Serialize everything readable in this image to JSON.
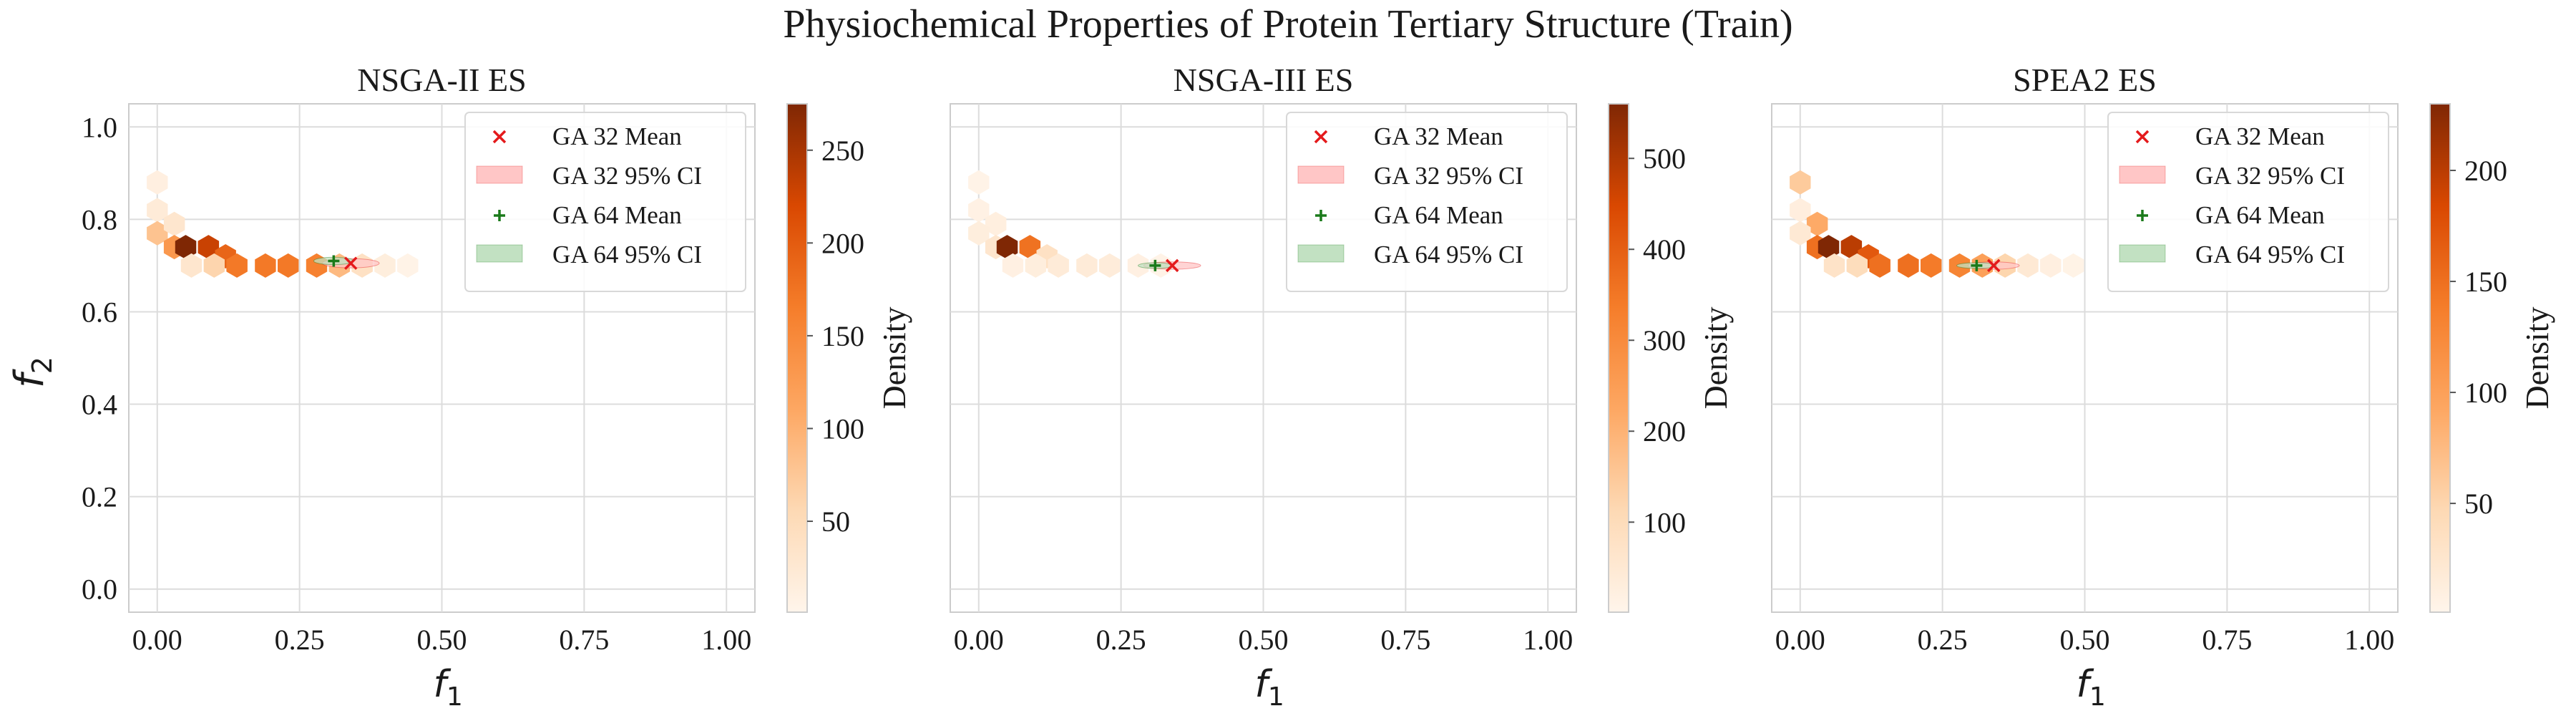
{
  "figure": {
    "suptitle": "Physiochemical Properties of Protein Tertiary Structure (Train)",
    "shared_ylabel": "f",
    "shared_ylabel_sub": "2",
    "xlabel": "f",
    "xlabel_sub": "1",
    "colorbar_label": "Density"
  },
  "colors": {
    "ga32": "#e41a1c",
    "ga32_fill": "#ffc6c6",
    "ga64": "#1a7a1a",
    "ga64_fill": "#c2e1c2",
    "grid": "#dcdcdc",
    "cmap_low": "#fff5eb",
    "cmap_mid": "#f57d2a",
    "cmap_high": "#7f2704"
  },
  "legend": {
    "ga32_mean": "GA 32 Mean",
    "ga32_ci": "GA 32 95% CI",
    "ga64_mean": "GA 64 Mean",
    "ga64_ci": "GA 64 95% CI"
  },
  "chart_data": [
    {
      "type": "hexbin",
      "title": "NSGA-II ES",
      "xlabel": "f1",
      "ylabel": "f2",
      "xlim": [
        -0.05,
        1.05
      ],
      "ylim": [
        -0.05,
        1.05
      ],
      "xticks": [
        0.0,
        0.25,
        0.5,
        0.75,
        1.0
      ],
      "xtick_labels": [
        "0.00",
        "0.25",
        "0.50",
        "0.75",
        "1.00"
      ],
      "yticks": [
        0.0,
        0.2,
        0.4,
        0.6,
        0.8,
        1.0
      ],
      "ytick_labels": [
        "0.0",
        "0.2",
        "0.4",
        "0.6",
        "0.8",
        "1.0"
      ],
      "grid": true,
      "legend_position": "top-right",
      "colorbar": {
        "label": "Density",
        "min": 1,
        "max": 275,
        "ticks": [
          50,
          100,
          150,
          200,
          250
        ]
      },
      "hexbins": [
        {
          "x": 0.0,
          "y": 0.88,
          "density": 12
        },
        {
          "x": 0.0,
          "y": 0.82,
          "density": 20
        },
        {
          "x": 0.0,
          "y": 0.77,
          "density": 80
        },
        {
          "x": 0.03,
          "y": 0.79,
          "density": 30
        },
        {
          "x": 0.03,
          "y": 0.74,
          "density": 130
        },
        {
          "x": 0.05,
          "y": 0.74,
          "density": 275
        },
        {
          "x": 0.09,
          "y": 0.74,
          "density": 230
        },
        {
          "x": 0.12,
          "y": 0.72,
          "density": 190
        },
        {
          "x": 0.14,
          "y": 0.7,
          "density": 170
        },
        {
          "x": 0.19,
          "y": 0.7,
          "density": 170
        },
        {
          "x": 0.23,
          "y": 0.7,
          "density": 170
        },
        {
          "x": 0.28,
          "y": 0.7,
          "density": 160
        },
        {
          "x": 0.32,
          "y": 0.7,
          "density": 90
        },
        {
          "x": 0.36,
          "y": 0.7,
          "density": 40
        },
        {
          "x": 0.4,
          "y": 0.7,
          "density": 15
        },
        {
          "x": 0.44,
          "y": 0.7,
          "density": 5
        },
        {
          "x": 0.06,
          "y": 0.7,
          "density": 30
        },
        {
          "x": 0.1,
          "y": 0.7,
          "density": 60
        }
      ],
      "ga32": {
        "mean": [
          0.34,
          0.705
        ],
        "ci_halfwidth": [
          0.05,
          0.01
        ]
      },
      "ga64": {
        "mean": [
          0.31,
          0.71
        ],
        "ci_halfwidth": [
          0.035,
          0.008
        ]
      }
    },
    {
      "type": "hexbin",
      "title": "NSGA-III ES",
      "xlabel": "f1",
      "ylabel": "",
      "xlim": [
        -0.05,
        1.05
      ],
      "ylim": [
        -0.05,
        1.05
      ],
      "xticks": [
        0.0,
        0.25,
        0.5,
        0.75,
        1.0
      ],
      "xtick_labels": [
        "0.00",
        "0.25",
        "0.50",
        "0.75",
        "1.00"
      ],
      "yticks": [
        0.0,
        0.2,
        0.4,
        0.6,
        0.8,
        1.0
      ],
      "ytick_labels": [],
      "grid": true,
      "legend_position": "top-right",
      "colorbar": {
        "label": "Density",
        "min": 1,
        "max": 560,
        "ticks": [
          100,
          200,
          300,
          400,
          500
        ]
      },
      "hexbins": [
        {
          "x": 0.0,
          "y": 0.88,
          "density": 10
        },
        {
          "x": 0.0,
          "y": 0.82,
          "density": 15
        },
        {
          "x": 0.03,
          "y": 0.79,
          "density": 25
        },
        {
          "x": 0.0,
          "y": 0.77,
          "density": 30
        },
        {
          "x": 0.03,
          "y": 0.74,
          "density": 60
        },
        {
          "x": 0.05,
          "y": 0.74,
          "density": 560
        },
        {
          "x": 0.09,
          "y": 0.74,
          "density": 360
        },
        {
          "x": 0.12,
          "y": 0.72,
          "density": 80
        },
        {
          "x": 0.14,
          "y": 0.7,
          "density": 40
        },
        {
          "x": 0.19,
          "y": 0.7,
          "density": 40
        },
        {
          "x": 0.23,
          "y": 0.7,
          "density": 35
        },
        {
          "x": 0.28,
          "y": 0.7,
          "density": 20
        },
        {
          "x": 0.32,
          "y": 0.7,
          "density": 10
        },
        {
          "x": 0.06,
          "y": 0.7,
          "density": 20
        },
        {
          "x": 0.1,
          "y": 0.7,
          "density": 30
        }
      ],
      "ga32": {
        "mean": [
          0.34,
          0.7
        ],
        "ci_halfwidth": [
          0.05,
          0.008
        ]
      },
      "ga64": {
        "mean": [
          0.31,
          0.7
        ],
        "ci_halfwidth": [
          0.03,
          0.006
        ]
      }
    },
    {
      "type": "hexbin",
      "title": "SPEA2 ES",
      "xlabel": "f1",
      "ylabel": "",
      "xlim": [
        -0.05,
        1.05
      ],
      "ylim": [
        -0.05,
        1.05
      ],
      "xticks": [
        0.0,
        0.25,
        0.5,
        0.75,
        1.0
      ],
      "xtick_labels": [
        "0.00",
        "0.25",
        "0.50",
        "0.75",
        "1.00"
      ],
      "yticks": [
        0.0,
        0.2,
        0.4,
        0.6,
        0.8,
        1.0
      ],
      "ytick_labels": [],
      "grid": true,
      "legend_position": "top-right",
      "colorbar": {
        "label": "Density",
        "min": 1,
        "max": 230,
        "ticks": [
          50,
          100,
          150,
          200
        ]
      },
      "hexbins": [
        {
          "x": 0.0,
          "y": 0.88,
          "density": 60
        },
        {
          "x": 0.0,
          "y": 0.82,
          "density": 12
        },
        {
          "x": 0.03,
          "y": 0.79,
          "density": 90
        },
        {
          "x": 0.0,
          "y": 0.77,
          "density": 20
        },
        {
          "x": 0.03,
          "y": 0.74,
          "density": 150
        },
        {
          "x": 0.05,
          "y": 0.74,
          "density": 230
        },
        {
          "x": 0.09,
          "y": 0.74,
          "density": 200
        },
        {
          "x": 0.12,
          "y": 0.72,
          "density": 170
        },
        {
          "x": 0.14,
          "y": 0.7,
          "density": 150
        },
        {
          "x": 0.19,
          "y": 0.7,
          "density": 150
        },
        {
          "x": 0.23,
          "y": 0.7,
          "density": 140
        },
        {
          "x": 0.28,
          "y": 0.7,
          "density": 130
        },
        {
          "x": 0.32,
          "y": 0.7,
          "density": 100
        },
        {
          "x": 0.36,
          "y": 0.7,
          "density": 50
        },
        {
          "x": 0.4,
          "y": 0.7,
          "density": 20
        },
        {
          "x": 0.44,
          "y": 0.7,
          "density": 10
        },
        {
          "x": 0.48,
          "y": 0.7,
          "density": 5
        },
        {
          "x": 0.06,
          "y": 0.7,
          "density": 30
        },
        {
          "x": 0.1,
          "y": 0.7,
          "density": 40
        }
      ],
      "ga32": {
        "mean": [
          0.34,
          0.7
        ],
        "ci_halfwidth": [
          0.045,
          0.008
        ]
      },
      "ga64": {
        "mean": [
          0.31,
          0.7
        ],
        "ci_halfwidth": [
          0.035,
          0.006
        ]
      }
    }
  ]
}
